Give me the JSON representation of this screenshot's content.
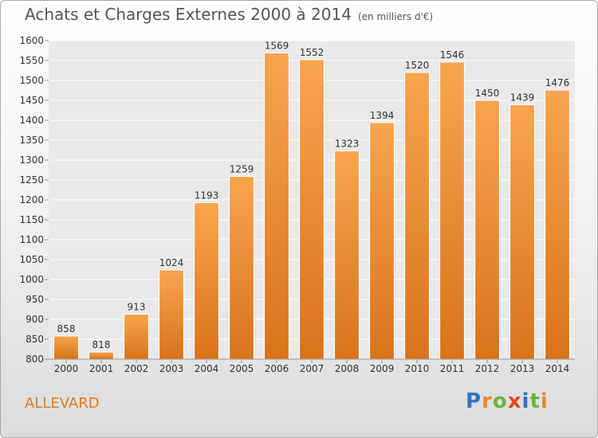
{
  "header": {
    "title": "Achats et Charges Externes 2000 à 2014",
    "subtitle": "(en milliers d'€)"
  },
  "place_name": "ALLEVARD",
  "logo": {
    "text": "Proxiti",
    "letters": [
      {
        "ch": "P",
        "color": "#2a73c8"
      },
      {
        "ch": "r",
        "color": "#e8862a"
      },
      {
        "ch": "o",
        "color": "#6db33f"
      },
      {
        "ch": "x",
        "color": "#e04a2a"
      },
      {
        "ch": "i",
        "color": "#2a73c8"
      },
      {
        "ch": "t",
        "color": "#6db33f"
      },
      {
        "ch": "i",
        "color": "#e8862a"
      }
    ]
  },
  "colors": {
    "bar_light": "#f7a54e",
    "bar_dark": "#d9731a",
    "grid": "#ffffff",
    "text": "#333333",
    "place": "#e07b1c"
  },
  "chart_data": {
    "type": "bar",
    "categories": [
      "2000",
      "2001",
      "2002",
      "2003",
      "2004",
      "2005",
      "2006",
      "2007",
      "2008",
      "2009",
      "2010",
      "2011",
      "2012",
      "2013",
      "2014"
    ],
    "values": [
      858,
      818,
      913,
      1024,
      1193,
      1259,
      1569,
      1552,
      1323,
      1394,
      1520,
      1546,
      1450,
      1439,
      1476
    ],
    "ylim": [
      800,
      1600
    ],
    "ytick_step": 50,
    "grid": true,
    "xlabel": "",
    "ylabel": ""
  }
}
